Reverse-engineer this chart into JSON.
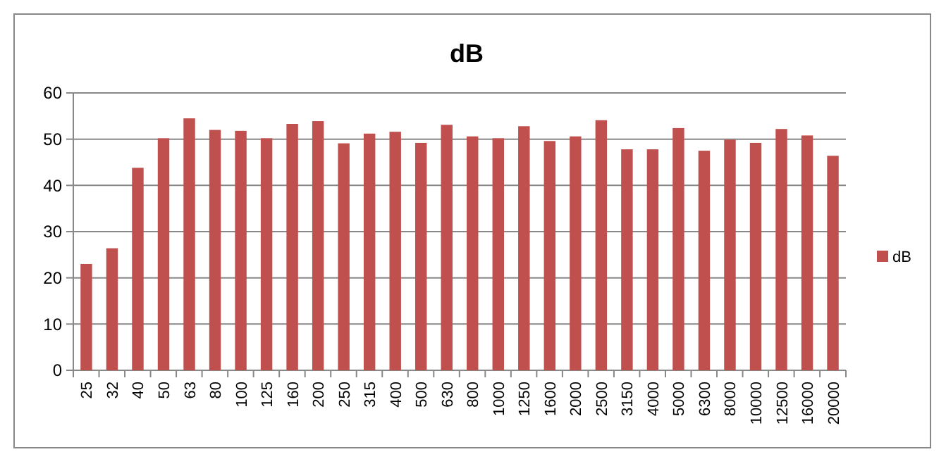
{
  "chart_data": {
    "type": "bar",
    "title": "dB",
    "categories": [
      "25",
      "32",
      "40",
      "50",
      "63",
      "80",
      "100",
      "125",
      "160",
      "200",
      "250",
      "315",
      "400",
      "500",
      "630",
      "800",
      "1000",
      "1250",
      "1600",
      "2000",
      "2500",
      "3150",
      "4000",
      "5000",
      "6300",
      "8000",
      "10000",
      "12500",
      "16000",
      "20000"
    ],
    "series": [
      {
        "name": "dB",
        "color": "#c0504d",
        "values": [
          23,
          26.4,
          43.8,
          50.2,
          54.5,
          52,
          51.8,
          50.2,
          53.3,
          53.9,
          49.1,
          51.2,
          51.6,
          49.2,
          53.1,
          50.6,
          50.2,
          52.8,
          49.6,
          50.6,
          54.1,
          47.8,
          47.8,
          52.4,
          47.5,
          49.9,
          49.2,
          52.2,
          50.8,
          46.4
        ]
      }
    ],
    "ylim": [
      0,
      60
    ],
    "yticks": [
      0,
      10,
      20,
      30,
      40,
      50,
      60
    ],
    "grid": "y",
    "legend": "right"
  }
}
